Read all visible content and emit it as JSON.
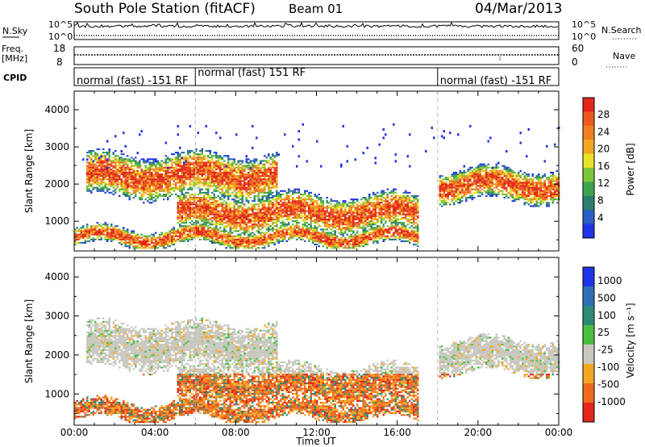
{
  "header": {
    "title": "South Pole Station (fitACF)",
    "beam": "Beam 01",
    "date": "04/Mar/2013"
  },
  "top_panels": {
    "nsky_label": "N.Sky",
    "nsky_ticks": [
      "10^5",
      "10^0"
    ],
    "nsearch_label": "N.Search",
    "nsearch_ticks": [
      "10^5",
      "10^0"
    ],
    "freq_label_line1": "Freq.",
    "freq_label_line2": "[MHz]",
    "freq_ticks": [
      "18",
      "8"
    ],
    "nave_label": "Nave",
    "nave_ticks": [
      "60",
      "0"
    ],
    "cpid_label": "CPID",
    "cpid_segments": [
      {
        "label": "normal (fast) -151 RF",
        "start_hr": 0,
        "end_hr": 6
      },
      {
        "label": "normal (fast) 151 RF",
        "start_hr": 6,
        "end_hr": 18
      },
      {
        "label": "normal (fast) -151 RF",
        "start_hr": 18,
        "end_hr": 24
      }
    ]
  },
  "chart_data": [
    {
      "type": "heatmap",
      "quantity": "Power",
      "ylabel": "Slant Range [km]",
      "ylim": [
        200,
        4500
      ],
      "yticks": [
        "1000",
        "2000",
        "3000",
        "4000"
      ],
      "xlim": [
        0,
        24
      ],
      "colorbar": {
        "label": "Power [dB]",
        "ticks": [
          "28",
          "24",
          "20",
          "16",
          "12",
          "8",
          "4"
        ],
        "range": [
          0,
          30
        ],
        "colors": [
          "#1f33e6",
          "#2c5fc4",
          "#2c7d70",
          "#3fa24d",
          "#7cc63c",
          "#e9e12a",
          "#f5a623",
          "#f07f22",
          "#ec5a1e",
          "#e2261b"
        ]
      },
      "echo_bands": [
        {
          "name": "upper",
          "range_km": [
            1600,
            2800
          ],
          "time_hr": [
            0.5,
            10
          ]
        },
        {
          "name": "middle",
          "range_km": [
            700,
            1700
          ],
          "time_hr": [
            5,
            17
          ]
        },
        {
          "name": "lower",
          "range_km": [
            300,
            800
          ],
          "time_hr": [
            0,
            17
          ]
        },
        {
          "name": "late",
          "range_km": [
            1500,
            2400
          ],
          "time_hr": [
            18,
            24
          ]
        }
      ]
    },
    {
      "type": "heatmap",
      "quantity": "Velocity",
      "ylabel": "Slant Range [km]",
      "xlabel": "Time UT",
      "ylim": [
        200,
        4500
      ],
      "yticks": [
        "1000",
        "2000",
        "3000",
        "4000"
      ],
      "xlim": [
        0,
        24
      ],
      "xticks": [
        "00:00",
        "04:00",
        "08:00",
        "12:00",
        "16:00",
        "20:00",
        "00:00"
      ],
      "colorbar": {
        "label": "Velocity [m s⁻¹]",
        "ticks": [
          "1000",
          "500",
          "100",
          "25",
          "-25",
          "-100",
          "-500",
          "-1000"
        ],
        "colors": [
          "#1f33e6",
          "#2f6fb8",
          "#2e8b78",
          "#4bbf42",
          "#c8c8c0",
          "#f5a623",
          "#ee6a1f",
          "#e2261b"
        ]
      }
    }
  ]
}
